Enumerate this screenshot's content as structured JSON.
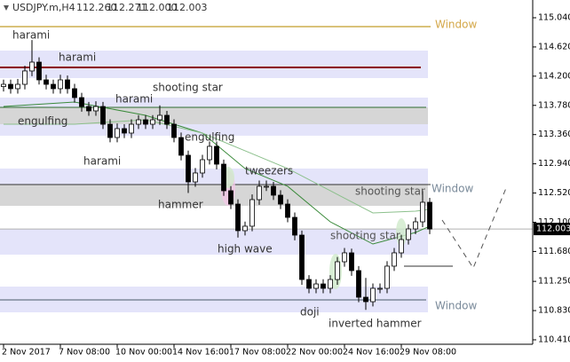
{
  "header": {
    "symbol": "USDJPY.m,H4",
    "quote": [
      "112.260",
      "112.271",
      "112.000",
      "112.003"
    ]
  },
  "chart_data": {
    "type": "candlestick",
    "categories": [
      "2 Nov 2017",
      null,
      null,
      null,
      null,
      null,
      null,
      null,
      "7 Nov 08:00",
      null,
      null,
      null,
      null,
      null,
      null,
      null,
      "10 Nov 00:00",
      null,
      null,
      null,
      null,
      null,
      null,
      null,
      "14 Nov 16:00",
      null,
      null,
      null,
      null,
      null,
      null,
      null,
      "17 Nov 08:00",
      null,
      null,
      null,
      null,
      null,
      null,
      null,
      "22 Nov 00:00",
      null,
      null,
      null,
      null,
      null,
      null,
      null,
      "24 Nov 16:00",
      null,
      null,
      null,
      null,
      null,
      null,
      null,
      "29 Nov 08:00",
      null,
      null,
      null,
      null
    ],
    "open": [
      114.05,
      114.083,
      114.02,
      114.083,
      114.275,
      114.402,
      114.147,
      114.083,
      114.02,
      114.147,
      114.02,
      113.892,
      113.764,
      113.701,
      113.764,
      113.509,
      113.318,
      113.446,
      113.382,
      113.509,
      113.573,
      113.509,
      113.573,
      113.637,
      113.509,
      113.318,
      113.063,
      112.68,
      112.808,
      112.999,
      113.191,
      112.935,
      112.553,
      112.361,
      111.979,
      112.043,
      112.425,
      112.617,
      112.617,
      112.489,
      112.361,
      112.17,
      111.915,
      111.277,
      111.15,
      111.213,
      111.15,
      111.277,
      111.532,
      111.66,
      111.405,
      111.022,
      110.958,
      111.15,
      111.15,
      111.469,
      111.66,
      111.851,
      112.004,
      112.106,
      112.387
    ],
    "high": [
      114.15,
      114.15,
      114.16,
      114.35,
      114.72,
      114.47,
      114.22,
      114.15,
      114.22,
      114.21,
      114.09,
      113.96,
      113.83,
      113.84,
      113.83,
      113.58,
      113.52,
      113.51,
      113.58,
      113.64,
      113.64,
      113.64,
      113.78,
      113.7,
      113.58,
      113.39,
      113.13,
      112.88,
      113.07,
      113.26,
      113.26,
      113.0,
      112.62,
      112.43,
      112.11,
      112.5,
      112.7,
      112.7,
      112.68,
      112.56,
      112.43,
      112.24,
      111.98,
      111.34,
      111.28,
      111.28,
      111.34,
      111.6,
      111.73,
      111.72,
      111.47,
      111.3,
      111.22,
      111.22,
      111.54,
      111.73,
      111.92,
      112.07,
      112.17,
      112.55,
      112.45
    ],
    "low": [
      113.98,
      113.95,
      113.95,
      114.01,
      114.2,
      114.08,
      114.01,
      113.95,
      113.95,
      113.95,
      113.82,
      113.69,
      113.63,
      113.63,
      113.44,
      113.25,
      113.25,
      113.31,
      113.31,
      113.44,
      113.44,
      113.44,
      113.5,
      113.44,
      113.25,
      112.99,
      112.52,
      112.61,
      112.74,
      112.93,
      112.86,
      112.48,
      112.29,
      111.88,
      111.91,
      111.97,
      112.35,
      112.55,
      112.42,
      112.29,
      112.1,
      111.84,
      111.2,
      111.08,
      111.08,
      111.08,
      111.08,
      111.2,
      111.46,
      111.33,
      110.95,
      110.84,
      110.89,
      111.08,
      111.08,
      111.4,
      111.59,
      111.78,
      111.93,
      112.03,
      111.93
    ],
    "close": [
      114.083,
      114.02,
      114.083,
      114.275,
      114.402,
      114.147,
      114.083,
      114.02,
      114.147,
      114.02,
      113.892,
      113.764,
      113.701,
      113.764,
      113.509,
      113.318,
      113.446,
      113.382,
      113.509,
      113.573,
      113.509,
      113.573,
      113.637,
      113.509,
      113.318,
      113.063,
      112.68,
      112.808,
      112.999,
      113.191,
      112.935,
      112.553,
      112.361,
      111.979,
      112.043,
      112.425,
      112.617,
      112.617,
      112.489,
      112.361,
      112.17,
      111.915,
      111.277,
      111.15,
      111.213,
      111.15,
      111.277,
      111.532,
      111.66,
      111.405,
      111.022,
      110.958,
      111.15,
      111.15,
      111.469,
      111.66,
      111.851,
      112.004,
      112.106,
      112.387,
      112.003
    ],
    "ylim": [
      110.346,
      115.295
    ],
    "yticks": [
      {
        "value": 115.04,
        "label": "115.040"
      },
      {
        "value": 114.62,
        "label": "114.620"
      },
      {
        "value": 114.2,
        "label": "114.200"
      },
      {
        "value": 113.78,
        "label": "113.780"
      },
      {
        "value": 113.36,
        "label": "113.360"
      },
      {
        "value": 112.94,
        "label": "112.940"
      },
      {
        "value": 112.52,
        "label": "112.520"
      },
      {
        "value": 112.1,
        "label": "112.100"
      },
      {
        "value": 111.68,
        "label": "111.680"
      },
      {
        "value": 111.25,
        "label": "111.250"
      },
      {
        "value": 110.83,
        "label": "110.830"
      },
      {
        "value": 110.41,
        "label": "110.410"
      }
    ],
    "bands": [
      {
        "range": [
          114.173,
          114.568
        ],
        "color": "#e4e4fa"
      },
      {
        "range": [
          113.344,
          113.892
        ],
        "color": "#e4e4fa"
      },
      {
        "range": [
          113.509,
          113.752
        ],
        "color": "#d6d6d6"
      },
      {
        "range": [
          112.336,
          112.872
        ],
        "color": "#e4e4fa"
      },
      {
        "range": [
          112.336,
          112.642
        ],
        "color": "#d6d6d6"
      },
      {
        "range": [
          111.634,
          112.004
        ],
        "color": "#e4e4fa"
      },
      {
        "range": [
          110.805,
          111.175
        ],
        "color": "#e4e4fa"
      }
    ],
    "levels": [
      {
        "value": 114.912,
        "color": "#d9c27a"
      },
      {
        "value": 114.326,
        "color": "#8b0000"
      },
      {
        "value": 113.752,
        "color": "#2e6b2e"
      },
      {
        "value": 112.642,
        "color": "#333333"
      },
      {
        "value": 112.003,
        "color": "#b0b0b0"
      },
      {
        "value": 110.984,
        "color": "#4a5a6a"
      }
    ],
    "averages": [
      {
        "color": "#3a8a3a",
        "x": [
          0,
          10,
          20,
          28,
          34,
          40,
          46,
          52,
          58,
          60
        ],
        "values": [
          113.764,
          113.828,
          113.637,
          113.382,
          112.872,
          112.617,
          112.106,
          111.787,
          111.953,
          112.043
        ]
      },
      {
        "color": "#8cc08c",
        "x": [
          0,
          10,
          20,
          28,
          34,
          40,
          46,
          52,
          58,
          60
        ],
        "values": [
          113.509,
          113.509,
          113.573,
          113.382,
          113.127,
          112.872,
          112.553,
          112.234,
          112.259,
          112.285
        ]
      }
    ],
    "annotations": [
      "harami",
      "harami",
      "harami",
      "shooting star",
      "engulfing",
      "harami",
      "engulfing",
      "hammer",
      "tweezers",
      "high wave",
      "shooting star",
      "shooting star",
      "doji",
      "inverted hammer",
      "Window",
      "Window",
      "Window"
    ]
  }
}
